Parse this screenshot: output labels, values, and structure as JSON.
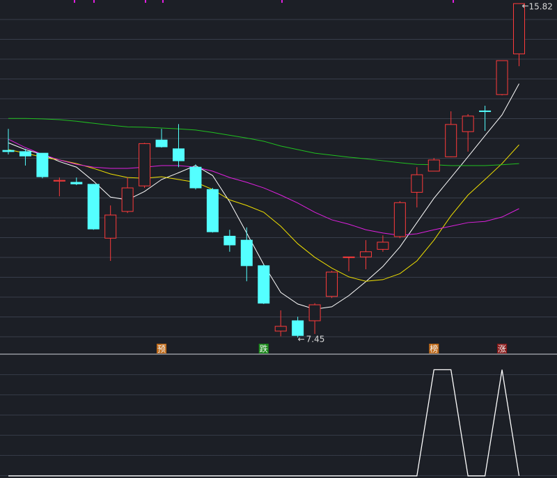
{
  "chart_data": {
    "type": "candlestick",
    "ylim": [
      7.05,
      15.91
    ],
    "open": [
      12.14,
      12.11,
      12.07,
      11.37,
      11.34,
      11.29,
      9.94,
      10.61,
      11.25,
      12.4,
      12.18,
      11.72,
      11.16,
      9.99,
      9.89,
      9.25,
      7.61,
      7.87,
      7.87,
      8.48,
      9.47,
      9.47,
      9.66,
      9.98,
      11.09,
      11.62,
      11.98,
      12.61,
      13.13,
      13.54,
      14.56
    ],
    "high": [
      12.68,
      12.18,
      12.07,
      11.46,
      11.46,
      11.3,
      10.76,
      11.46,
      12.33,
      12.68,
      12.8,
      11.79,
      11.2,
      10.15,
      10.21,
      9.28,
      8.13,
      7.97,
      8.31,
      9.12,
      9.47,
      9.89,
      10.01,
      10.87,
      11.72,
      11.95,
      13.12,
      13.05,
      13.26,
      14.39,
      15.82
    ],
    "low": [
      12.04,
      11.76,
      11.44,
      10.99,
      11.27,
      10.15,
      9.37,
      10.57,
      11.2,
      12.21,
      11.72,
      11.16,
      10.08,
      9.6,
      8.86,
      8.29,
      7.48,
      7.45,
      7.54,
      8.44,
      9.11,
      9.16,
      9.6,
      9.94,
      10.71,
      11.62,
      11.97,
      12.11,
      12.63,
      13.52,
      14.25
    ],
    "close": [
      12.11,
      12.0,
      11.48,
      11.39,
      11.3,
      10.17,
      10.52,
      11.2,
      12.31,
      12.23,
      11.88,
      11.2,
      10.1,
      9.77,
      9.25,
      8.31,
      7.73,
      7.5,
      8.27,
      9.09,
      9.47,
      9.6,
      9.84,
      10.83,
      11.53,
      11.9,
      12.79,
      13.0,
      13.12,
      14.39,
      15.82
    ],
    "up_color": "#ff3b3b",
    "down_color": "#54ffff",
    "moving_averages": [
      {
        "color": "#ffffff",
        "values": [
          12.33,
          12.16,
          12.04,
          11.86,
          11.72,
          11.37,
          10.97,
          10.9,
          11.11,
          11.41,
          11.58,
          11.76,
          11.51,
          10.85,
          10.07,
          9.28,
          8.58,
          8.29,
          8.16,
          8.22,
          8.5,
          8.85,
          9.23,
          9.72,
          10.33,
          10.94,
          11.46,
          11.98,
          12.51,
          13.03,
          13.81
        ]
      },
      {
        "color": "#f0e000",
        "values": [
          12.16,
          12.07,
          11.97,
          11.9,
          11.81,
          11.69,
          11.55,
          11.46,
          11.44,
          11.48,
          11.41,
          11.34,
          11.16,
          10.9,
          10.76,
          10.59,
          10.24,
          9.8,
          9.46,
          9.19,
          8.97,
          8.86,
          8.9,
          9.05,
          9.37,
          9.89,
          10.5,
          11.02,
          11.41,
          11.81,
          12.28
        ]
      },
      {
        "color": "#e020e0",
        "values": [
          12.42,
          12.21,
          12.04,
          11.9,
          11.79,
          11.72,
          11.69,
          11.69,
          11.72,
          11.76,
          11.76,
          11.72,
          11.62,
          11.46,
          11.34,
          11.2,
          11.02,
          10.82,
          10.59,
          10.4,
          10.29,
          10.15,
          10.07,
          10.01,
          10.05,
          10.15,
          10.24,
          10.33,
          10.36,
          10.47,
          10.68
        ]
      },
      {
        "color": "#20c020",
        "values": [
          12.94,
          12.94,
          12.93,
          12.91,
          12.87,
          12.82,
          12.77,
          12.73,
          12.72,
          12.7,
          12.68,
          12.65,
          12.59,
          12.52,
          12.45,
          12.37,
          12.25,
          12.16,
          12.07,
          12.02,
          11.97,
          11.93,
          11.88,
          11.83,
          11.79,
          11.78,
          11.76,
          11.76,
          11.76,
          11.78,
          11.81
        ]
      }
    ],
    "signals": [
      null,
      null,
      null,
      null,
      null,
      null,
      null,
      null,
      null,
      {
        "text": "预",
        "color": "#c06a18"
      },
      null,
      null,
      null,
      null,
      null,
      {
        "text": "跌",
        "color": "#1a8a1a"
      },
      null,
      null,
      null,
      null,
      null,
      null,
      null,
      null,
      null,
      {
        "text": "榜",
        "color": "#c06a18"
      },
      null,
      null,
      null,
      {
        "text": "涨",
        "color": "#8a1a1a"
      },
      null
    ],
    "indicator": {
      "type": "line",
      "color": "#ffffff",
      "ylim": [
        -0.02,
        1.14
      ],
      "values": [
        0,
        0,
        0,
        0,
        0,
        0,
        0,
        0,
        0,
        0,
        0,
        0,
        0,
        0,
        0,
        0,
        0,
        0,
        0,
        0,
        0,
        0,
        0,
        0,
        0,
        1,
        1,
        0,
        0,
        1,
        0
      ]
    }
  }
}
